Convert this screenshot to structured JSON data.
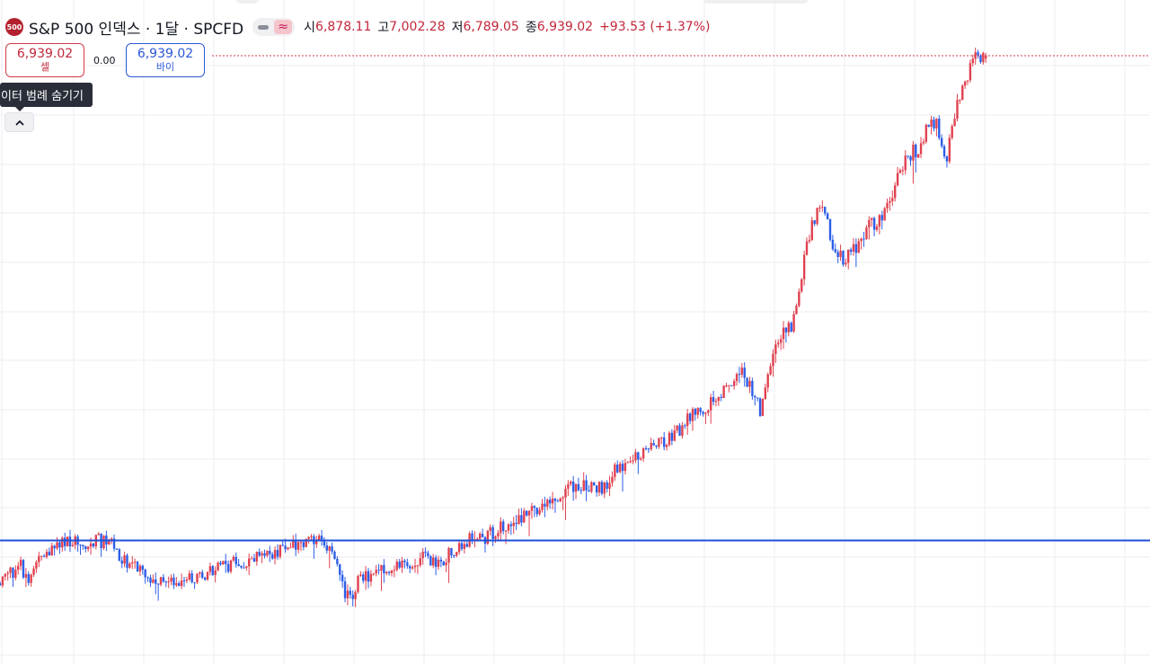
{
  "header": {
    "symbol_logo_text": "500",
    "title": "S&P 500 인덱스 · 1달 · SPCFD",
    "toggle_icon": "approx-equal-icon",
    "ohlc": {
      "open_label": "시",
      "open_value": "6,878.11",
      "high_label": "고",
      "high_value": "7,002.28",
      "low_label": "저",
      "low_value": "6,789.05",
      "close_label": "종",
      "close_value": "6,939.02",
      "change": "+93.53 (+1.37%)"
    }
  },
  "trade": {
    "sell_price": "6,939.02",
    "sell_label": "셀",
    "spread": "0.00",
    "buy_price": "6,939.02",
    "buy_label": "바이"
  },
  "legend_tooltip": "데이터 범례 숨기기",
  "collapse_icon": "chevron-up-icon",
  "colors": {
    "up": "#e0414f",
    "down": "#2b5ee8",
    "horizontal_line": "#1f4fd6",
    "last_price_line": "#d23a4a",
    "grid": "#eeeef2",
    "logo": "#b3212e"
  },
  "chart_data": {
    "type": "candlestick",
    "timeframe": "1 month",
    "instrument": "S&P 500 index CFD",
    "price_axis": "log",
    "visible_price_range": [
      1300,
      7200
    ],
    "path": [
      [
        0,
        1360
      ],
      [
        1.2,
        1400
      ],
      [
        2.2,
        1440
      ],
      [
        2.8,
        1380
      ],
      [
        4.2,
        1470
      ],
      [
        5.5,
        1520
      ],
      [
        7.4,
        1560
      ],
      [
        8.2,
        1540
      ],
      [
        9,
        1550
      ],
      [
        10.7,
        1550
      ],
      [
        12,
        1460
      ],
      [
        13.4,
        1430
      ],
      [
        14.8,
        1390
      ],
      [
        16.2,
        1360
      ],
      [
        17.5,
        1350
      ],
      [
        19.3,
        1395
      ],
      [
        20.4,
        1410
      ],
      [
        22.3,
        1440
      ],
      [
        24.3,
        1460
      ],
      [
        25.3,
        1470
      ],
      [
        26.9,
        1490
      ],
      [
        28.4,
        1520
      ],
      [
        29.7,
        1550
      ],
      [
        30.8,
        1550
      ],
      [
        31.7,
        1520
      ],
      [
        32.7,
        1460
      ],
      [
        33.3,
        1330
      ],
      [
        34.1,
        1310
      ],
      [
        34.7,
        1370
      ],
      [
        36.5,
        1410
      ],
      [
        38.1,
        1420
      ],
      [
        39.5,
        1450
      ],
      [
        41.1,
        1470
      ],
      [
        42.1,
        1440
      ],
      [
        43.7,
        1490
      ],
      [
        44.7,
        1530
      ],
      [
        45.8,
        1560
      ],
      [
        47.1,
        1570
      ],
      [
        48.6,
        1620
      ],
      [
        50.9,
        1680
      ],
      [
        52.6,
        1740
      ],
      [
        54.3,
        1800
      ],
      [
        55.9,
        1840
      ],
      [
        57.5,
        1835
      ],
      [
        58.5,
        1830
      ],
      [
        59.4,
        1930
      ],
      [
        61.1,
        1990
      ],
      [
        62.7,
        2070
      ],
      [
        64.4,
        2120
      ],
      [
        65.7,
        2180
      ],
      [
        67.1,
        2300
      ],
      [
        68.1,
        2280
      ],
      [
        69.1,
        2410
      ],
      [
        70.2,
        2500
      ],
      [
        71.8,
        2600
      ],
      [
        72.8,
        2460
      ],
      [
        73.6,
        2310
      ],
      [
        74.6,
        2720
      ],
      [
        75.5,
        2920
      ],
      [
        76.5,
        3000
      ],
      [
        77.1,
        3330
      ],
      [
        77.9,
        3800
      ],
      [
        78.7,
        4200
      ],
      [
        79.6,
        4380
      ],
      [
        80.3,
        3900
      ],
      [
        81.5,
        3700
      ],
      [
        82.8,
        3850
      ],
      [
        83.9,
        4100
      ],
      [
        85,
        4150
      ],
      [
        86.2,
        4520
      ],
      [
        87.5,
        5090
      ],
      [
        88.7,
        5200
      ],
      [
        89.6,
        5540
      ],
      [
        90.6,
        5630
      ],
      [
        91.4,
        4950
      ],
      [
        92.3,
        5900
      ],
      [
        93,
        6250
      ],
      [
        94,
        6870
      ],
      [
        95.1,
        6939.02
      ]
    ],
    "last_candle": {
      "open": 6878.11,
      "high": 7002.28,
      "low": 6789.05,
      "close": 6939.02
    },
    "horizontal_line": 1552,
    "last_price": 6939.02
  }
}
